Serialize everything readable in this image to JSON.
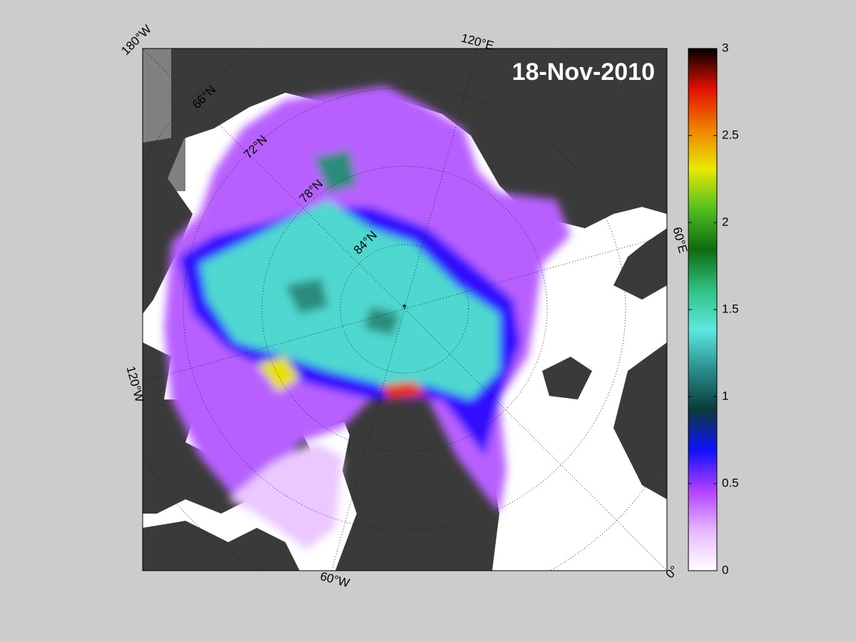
{
  "title": "18-Nov-2010",
  "graticule_labels": {
    "lon_180w": "180°W",
    "lon_120e": "120°E",
    "lon_60e": "60°E",
    "lon_0": "0°",
    "lon_60w": "60°W",
    "lon_120w": "120°W",
    "lat_66n": "66°N",
    "lat_72n": "72°N",
    "lat_78n": "78°N",
    "lat_84n": "84°N"
  },
  "colorbar": {
    "lim": [
      0,
      3
    ],
    "ticks": [
      0,
      0.5,
      1,
      1.5,
      2,
      2.5,
      3
    ],
    "colormap": [
      "#ffffff",
      "#e6b8ff",
      "#b040ff",
      "#1010ff",
      "#0a3a3a",
      "#2a8c8c",
      "#5ee8e0",
      "#30c080",
      "#106a10",
      "#50c020",
      "#e8e800",
      "#f08000",
      "#e01000",
      "#000000"
    ]
  }
}
